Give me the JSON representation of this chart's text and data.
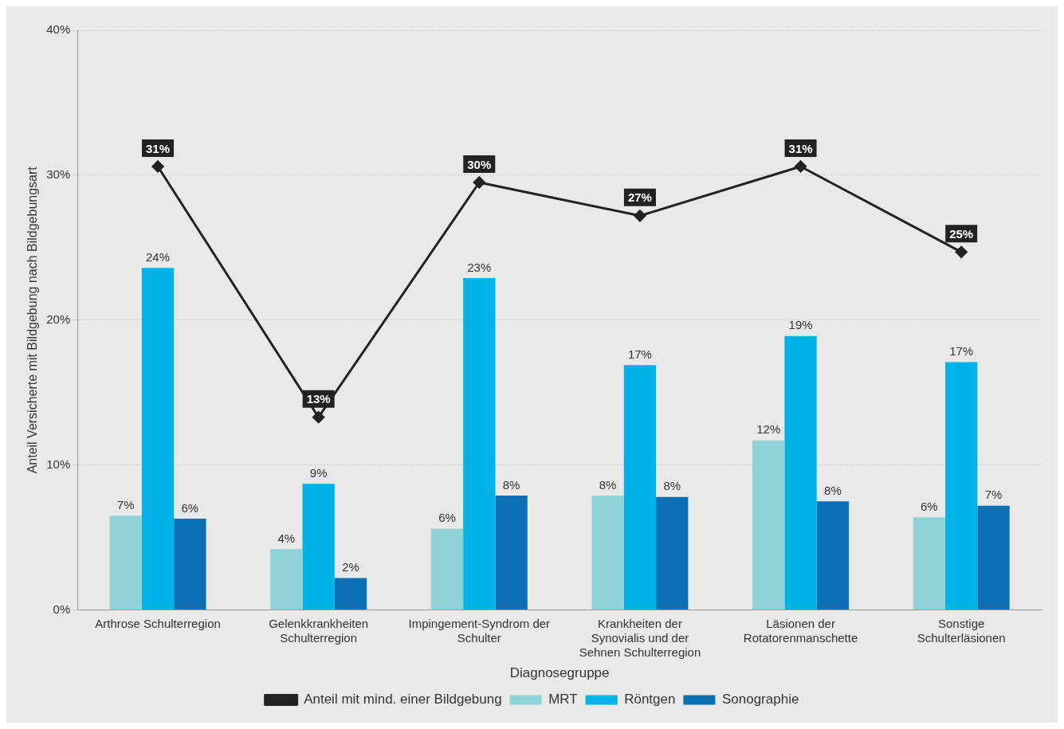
{
  "chart_data": {
    "type": "bar",
    "xlabel": "Diagnosegruppe",
    "ylabel": "Anteil Versicherte mit Bildgebung nach Bildgebungsart",
    "categories": [
      "Arthrose Schulterregion",
      "Gelenkkrankheiten Schulterregion",
      "Impingement-Syndrom der Schulter",
      "Krankheiten der Synovialis und der Sehnen Schulterregion",
      "Läsionen der Rotatorenmanschette",
      "Sonstige Schulterläsionen"
    ],
    "series": [
      {
        "name": "MRT",
        "color": "#8dd3d8",
        "values": [
          6.5,
          4.2,
          5.6,
          7.9,
          11.7,
          6.4
        ],
        "value_labels": [
          "7%",
          "4%",
          "6%",
          "8%",
          "12%",
          "6%"
        ]
      },
      {
        "name": "Röntgen",
        "color": "#00b2e8",
        "values": [
          23.6,
          8.7,
          22.9,
          16.9,
          18.9,
          17.1
        ],
        "value_labels": [
          "24%",
          "9%",
          "23%",
          "17%",
          "19%",
          "17%"
        ]
      },
      {
        "name": "Sonographie",
        "color": "#0a6fb5",
        "values": [
          6.3,
          2.2,
          7.9,
          7.8,
          7.5,
          7.2
        ],
        "value_labels": [
          "6%",
          "2%",
          "8%",
          "8%",
          "8%",
          "7%"
        ]
      },
      {
        "name": "Anteil mit mind. einer Bildgebung",
        "type": "line",
        "color": "#222222",
        "values": [
          30.6,
          13.3,
          29.5,
          27.2,
          30.6,
          24.7
        ],
        "value_labels": [
          "31%",
          "13%",
          "30%",
          "27%",
          "31%",
          "25%"
        ]
      }
    ],
    "ylim": [
      0,
      40
    ],
    "yticks": [
      {
        "value": 0,
        "label": "0%"
      },
      {
        "value": 10,
        "label": "10%"
      },
      {
        "value": 20,
        "label": "20%"
      },
      {
        "value": 30,
        "label": "30%"
      },
      {
        "value": 40,
        "label": "40%"
      }
    ],
    "grid": "y",
    "legend": "bottom",
    "marker": "diamond",
    "line_style": "solid"
  }
}
